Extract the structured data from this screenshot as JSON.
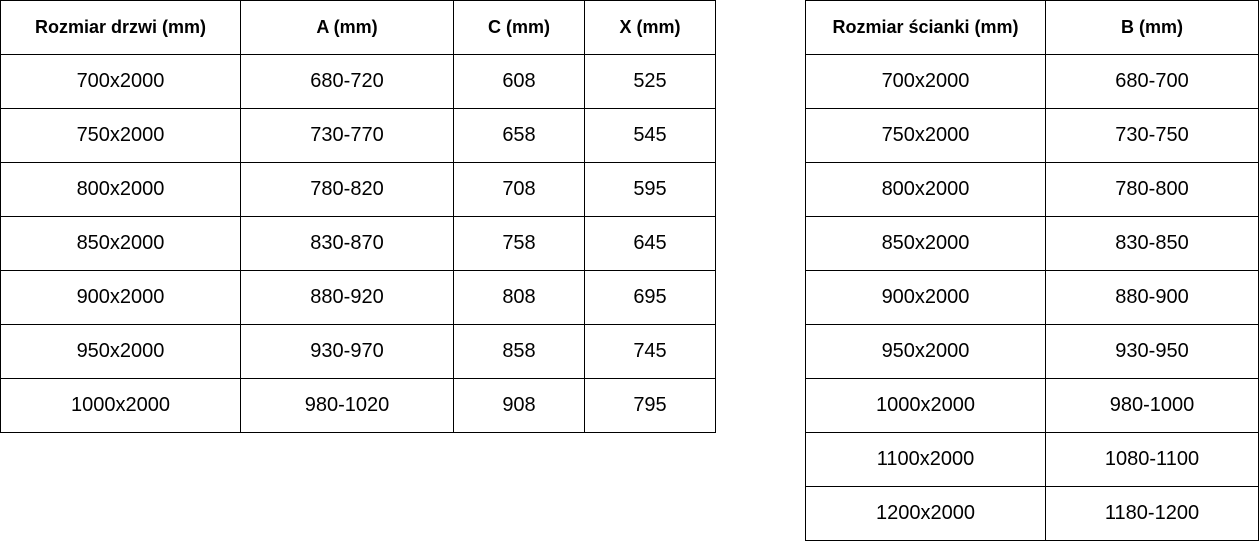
{
  "door_table": {
    "headers": [
      "Rozmiar drzwi (mm)",
      "A (mm)",
      "C (mm)",
      "X (mm)"
    ],
    "rows": [
      [
        "700x2000",
        "680-720",
        "608",
        "525"
      ],
      [
        "750x2000",
        "730-770",
        "658",
        "545"
      ],
      [
        "800x2000",
        "780-820",
        "708",
        "595"
      ],
      [
        "850x2000",
        "830-870",
        "758",
        "645"
      ],
      [
        "900x2000",
        "880-920",
        "808",
        "695"
      ],
      [
        "950x2000",
        "930-970",
        "858",
        "745"
      ],
      [
        "1000x2000",
        "980-1020",
        "908",
        "795"
      ]
    ]
  },
  "wall_table": {
    "headers": [
      "Rozmiar ścianki (mm)",
      "B (mm)"
    ],
    "rows": [
      [
        "700x2000",
        "680-700"
      ],
      [
        "750x2000",
        "730-750"
      ],
      [
        "800x2000",
        "780-800"
      ],
      [
        "850x2000",
        "830-850"
      ],
      [
        "900x2000",
        "880-900"
      ],
      [
        "950x2000",
        "930-950"
      ],
      [
        "1000x2000",
        "980-1000"
      ],
      [
        "1100x2000",
        "1080-1100"
      ],
      [
        "1200x2000",
        "1180-1200"
      ]
    ]
  }
}
